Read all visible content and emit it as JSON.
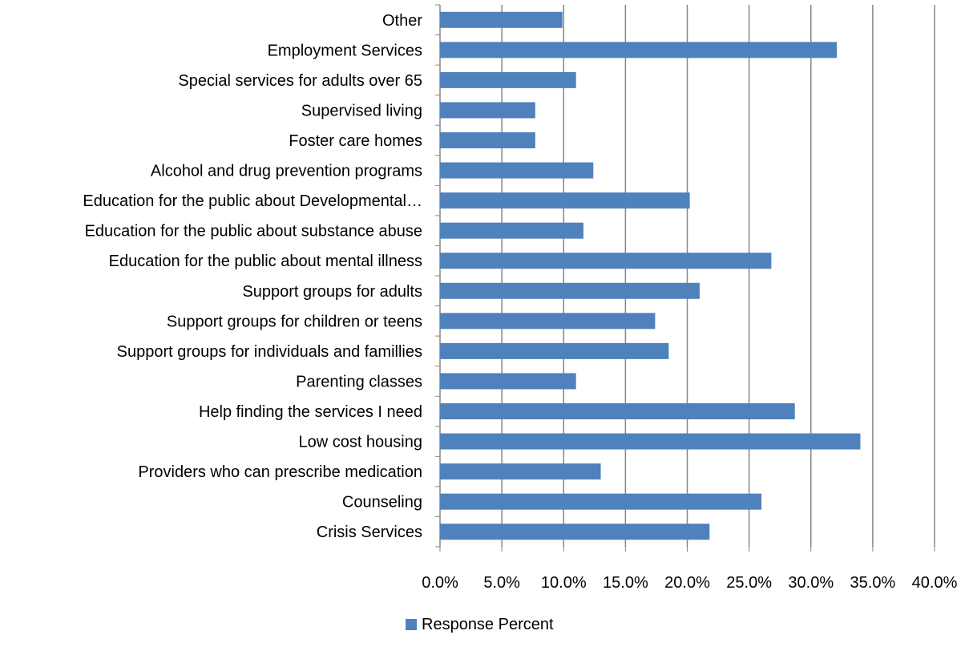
{
  "chart_data": {
    "type": "bar",
    "orientation": "horizontal",
    "categories": [
      "Other",
      "Employment Services",
      "Special services for adults over 65",
      "Supervised living",
      "Foster care homes",
      "Alcohol and drug prevention programs",
      "Education for the public about Developmental…",
      "Education for the public about substance abuse",
      "Education for the public about mental illness",
      "Support groups for adults",
      "Support groups for children or teens",
      "Support groups for individuals and famillies",
      "Parenting classes",
      "Help finding the services I need",
      "Low cost housing",
      "Providers who can prescribe medication",
      "Counseling",
      "Crisis Services"
    ],
    "series": [
      {
        "name": "Response Percent",
        "color": "#4f81bd",
        "values": [
          9.9,
          32.1,
          11.0,
          7.7,
          7.7,
          12.4,
          20.2,
          11.6,
          26.8,
          21.0,
          17.4,
          18.5,
          11.0,
          28.7,
          34.0,
          13.0,
          26.0,
          21.8
        ]
      }
    ],
    "xlim": [
      0,
      40
    ],
    "xticks": [
      "0.0%",
      "5.0%",
      "10.0%",
      "15.0%",
      "20.0%",
      "25.0%",
      "30.0%",
      "35.0%",
      "40.0%"
    ],
    "grid": "vertical",
    "legend": "bottom",
    "title": "",
    "xlabel": "",
    "ylabel": ""
  },
  "legend": {
    "label": "Response Percent",
    "color": "#4f81bd"
  }
}
